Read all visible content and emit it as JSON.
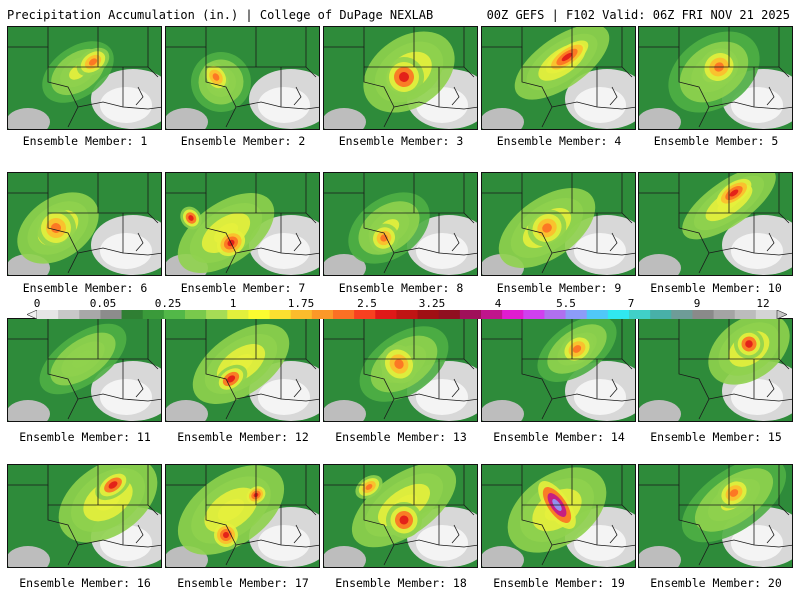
{
  "header": {
    "left": "Precipitation Accumulation (in.) | College of DuPage NEXLAB",
    "right": "00Z GEFS | F102 Valid: 06Z FRI NOV 21 2025"
  },
  "members": [
    {
      "label": "Ensemble Member: 1"
    },
    {
      "label": "Ensemble Member: 2"
    },
    {
      "label": "Ensemble Member: 3"
    },
    {
      "label": "Ensemble Member: 4"
    },
    {
      "label": "Ensemble Member: 5"
    },
    {
      "label": "Ensemble Member: 6"
    },
    {
      "label": "Ensemble Member: 7"
    },
    {
      "label": "Ensemble Member: 8"
    },
    {
      "label": "Ensemble Member: 9"
    },
    {
      "label": "Ensemble Member: 10"
    },
    {
      "label": "Ensemble Member: 11"
    },
    {
      "label": "Ensemble Member: 12"
    },
    {
      "label": "Ensemble Member: 13"
    },
    {
      "label": "Ensemble Member: 14"
    },
    {
      "label": "Ensemble Member: 15"
    },
    {
      "label": "Ensemble Member: 16"
    },
    {
      "label": "Ensemble Member: 17"
    },
    {
      "label": "Ensemble Member: 18"
    },
    {
      "label": "Ensemble Member: 19"
    },
    {
      "label": "Ensemble Member: 20"
    }
  ],
  "colorbar": {
    "ticks": [
      "0",
      "0.05",
      "0.25",
      "1",
      "1.75",
      "2.5",
      "3.25",
      "4",
      "5.5",
      "7",
      "9",
      "12"
    ],
    "colors": [
      "#e6e6e6",
      "#c8c8c8",
      "#a8a8a8",
      "#8c8c8c",
      "#2f7f33",
      "#3a9a3a",
      "#52b848",
      "#79c94c",
      "#a6dc55",
      "#e2f03c",
      "#fcfc30",
      "#fce030",
      "#fcbc2c",
      "#fc9828",
      "#fc7024",
      "#f84020",
      "#e01818",
      "#c01414",
      "#a01014",
      "#901020",
      "#a0105a",
      "#c0148c",
      "#e01cd0",
      "#d040f0",
      "#b070f0",
      "#8c9cf8",
      "#50c8f8",
      "#30e8f0",
      "#40d0c8",
      "#48b0a8",
      "#6e9c98",
      "#8a8a8a",
      "#a4a4a4",
      "#bcbcbc",
      "#d4d4d4"
    ]
  }
}
